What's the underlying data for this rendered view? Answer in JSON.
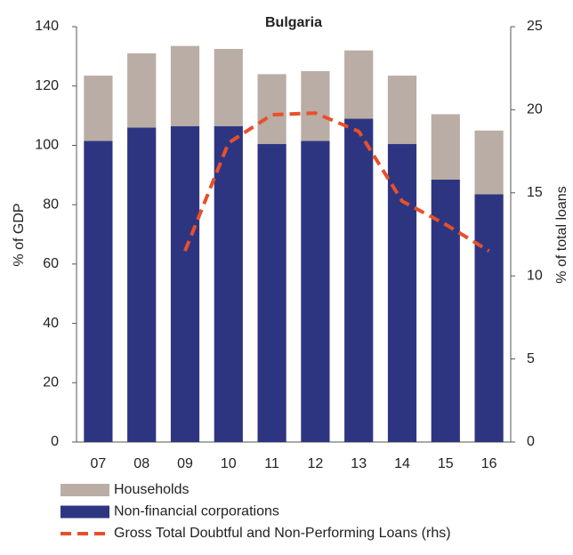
{
  "chart_data": {
    "type": "bar",
    "stacked": true,
    "title": "Bulgaria",
    "y_label": "% of GDP",
    "y2_label": "% of total loans",
    "categories": [
      "07",
      "08",
      "09",
      "10",
      "11",
      "12",
      "13",
      "14",
      "15",
      "16"
    ],
    "series": [
      {
        "name": "Non-financial corporations",
        "type": "bar",
        "color": "#2e3580",
        "values": [
          101.5,
          106,
          106.5,
          106.5,
          100.5,
          101.5,
          109,
          100.5,
          88.5,
          83.5
        ]
      },
      {
        "name": "Households",
        "type": "bar",
        "color": "#b9ada5",
        "values": [
          22,
          25,
          27,
          26,
          23.5,
          23.5,
          23,
          23,
          22,
          21.5
        ]
      },
      {
        "name": "Gross Total Doubtful and Non-Performing Loans (rhs)",
        "type": "line",
        "axis": "y2",
        "color": "#e8502a",
        "dashed": true,
        "values": [
          null,
          null,
          11.5,
          18,
          19.7,
          19.8,
          18.7,
          14.5,
          13.1,
          11.5
        ]
      }
    ],
    "ylim": [
      0,
      140
    ],
    "yticks": [
      0,
      20,
      40,
      60,
      80,
      100,
      120,
      140
    ],
    "y2lim": [
      0,
      25
    ],
    "y2ticks": [
      0,
      5,
      10,
      15,
      20,
      25
    ],
    "grid": false
  }
}
